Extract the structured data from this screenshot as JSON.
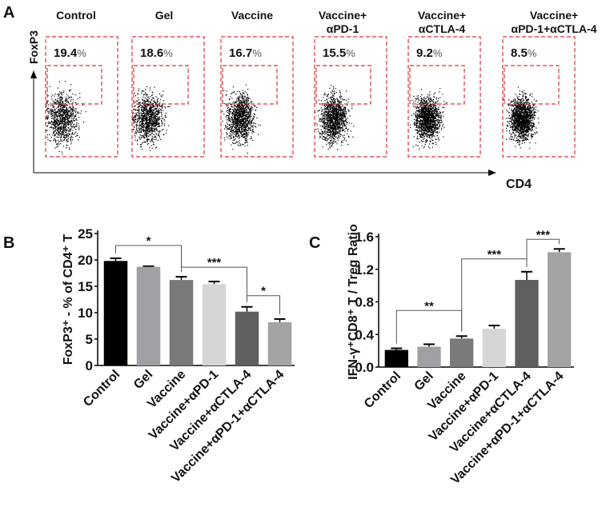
{
  "chart_data": [
    {
      "panel": "A",
      "type": "scatter",
      "x_axis_label": "CD4",
      "y_axis_label": "FoxP3",
      "gate_color": "#e0303c",
      "groups": [
        {
          "title": [
            "Control"
          ],
          "percent": "19.4",
          "unit": "%"
        },
        {
          "title": [
            "Gel"
          ],
          "percent": "18.6",
          "unit": "%"
        },
        {
          "title": [
            "Vaccine"
          ],
          "percent": "16.7",
          "unit": "%"
        },
        {
          "title": [
            "Vaccine+",
            "αPD-1"
          ],
          "percent": "15.5",
          "unit": "%"
        },
        {
          "title": [
            "Vaccine+",
            "αCTLA-4"
          ],
          "percent": "9.2",
          "unit": "%"
        },
        {
          "title": [
            "Vaccine+",
            "αPD-1+αCTLA-4"
          ],
          "percent": "8.5",
          "unit": "%"
        }
      ]
    },
    {
      "panel": "B",
      "type": "bar",
      "ylabel": "FoxP3⁺ - % of CD4⁺ T",
      "ylim": [
        0,
        25
      ],
      "yticks": [
        "0",
        "5",
        "10",
        "15",
        "20",
        "25"
      ],
      "categories": [
        "Control",
        "Gel",
        "Vaccine",
        "Vaccine+αPD-1",
        "Vaccine+αCTLA-4",
        "Vaccine+αPD-1+αCTLA-4"
      ],
      "values": [
        19.8,
        18.7,
        16.2,
        15.4,
        10.2,
        8.2
      ],
      "errors": [
        0.5,
        0.1,
        0.6,
        0.5,
        0.9,
        0.6
      ],
      "colors": [
        "#000000",
        "#a0a0a4",
        "#7a7a7a",
        "#d6d6d6",
        "#5f5f5f",
        "#a3a3a6"
      ],
      "significance": [
        {
          "from": 0,
          "to": 2,
          "label": "*"
        },
        {
          "from": 2,
          "to": 4,
          "label": "***"
        },
        {
          "from": 4,
          "to": 5,
          "label": "*"
        }
      ]
    },
    {
      "panel": "C",
      "type": "bar",
      "ylabel": "IFN-γ⁺CD8⁺ T / Treg Ratio",
      "ylim": [
        0,
        1.6
      ],
      "yticks": [
        "0.0",
        "0.4",
        "0.8",
        "1.2",
        "1.6"
      ],
      "categories": [
        "Control",
        "Gel",
        "Vaccine",
        "Vaccine+αPD-1",
        "Vaccine+αCTLA-4",
        "Vaccine+αPD-1+αCTLA-4"
      ],
      "values": [
        0.21,
        0.25,
        0.35,
        0.47,
        1.07,
        1.41
      ],
      "errors": [
        0.02,
        0.03,
        0.03,
        0.04,
        0.1,
        0.04
      ],
      "colors": [
        "#000000",
        "#a0a0a4",
        "#7a7a7a",
        "#d6d6d6",
        "#5f5f5f",
        "#a3a3a6"
      ],
      "significance": [
        {
          "from": 0,
          "to": 2,
          "label": "**"
        },
        {
          "from": 2,
          "to": 4,
          "label": "***"
        },
        {
          "from": 4,
          "to": 5,
          "label": "***"
        }
      ]
    }
  ],
  "panel_letters": [
    "A",
    "B",
    "C"
  ]
}
